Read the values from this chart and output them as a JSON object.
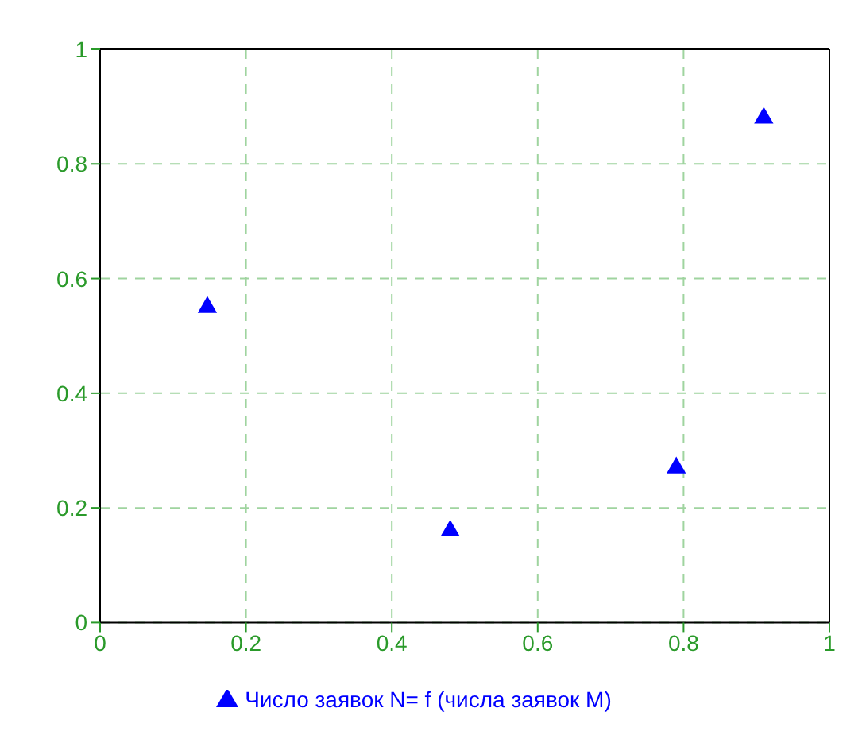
{
  "chart_data": {
    "type": "scatter",
    "x": [
      0.147,
      0.48,
      0.79,
      0.91
    ],
    "series": [
      {
        "name": "Число заявок N= f (числа заявок M)",
        "color": "#0000ff",
        "values": [
          0.55,
          0.16,
          0.27,
          0.88
        ]
      }
    ],
    "xlim": [
      0,
      1
    ],
    "xticks": [
      0,
      0.2,
      0.4,
      0.6,
      0.8,
      1
    ],
    "ylim": [
      0,
      1
    ],
    "yticks": [
      0,
      0.2,
      0.4,
      0.6,
      0.8,
      1
    ],
    "grid": true,
    "legend": "bottom",
    "marker": "triangle"
  }
}
